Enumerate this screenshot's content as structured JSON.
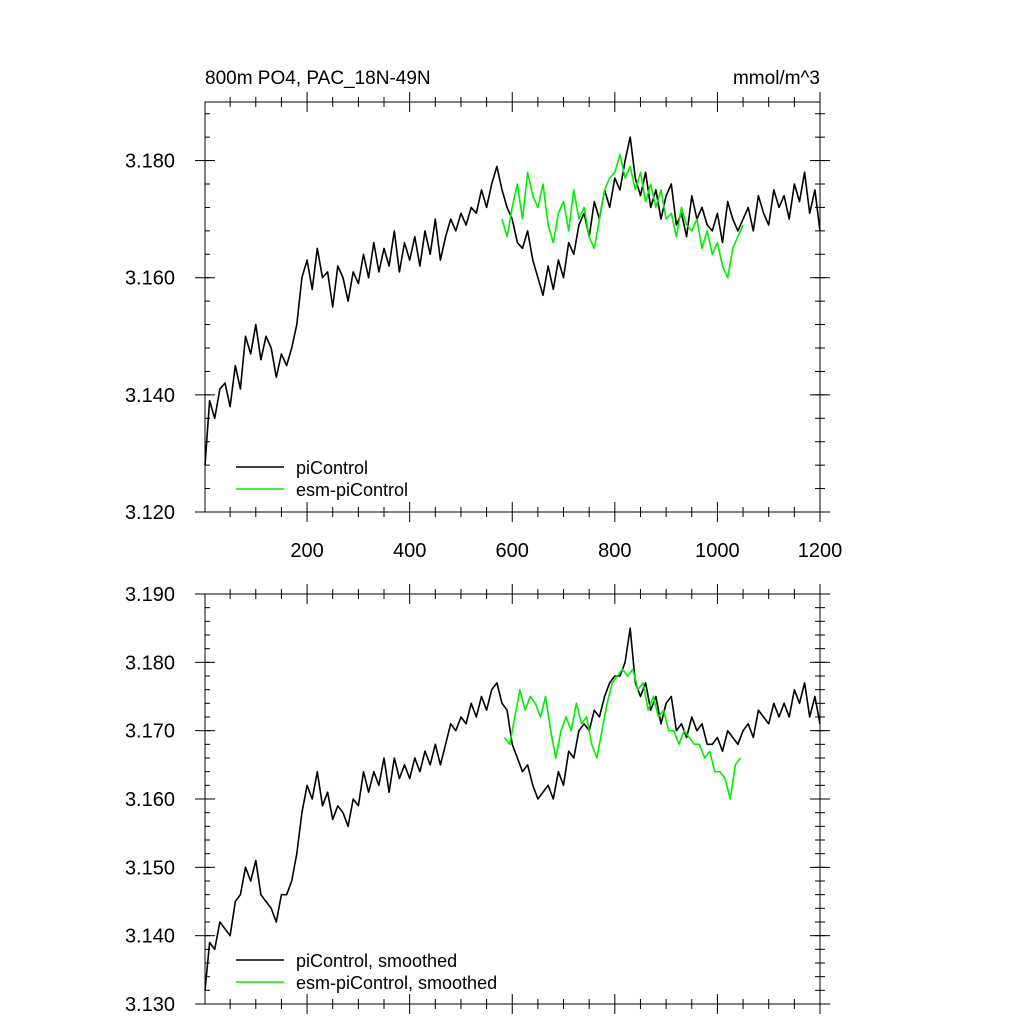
{
  "chart_data": [
    {
      "type": "line",
      "title": "800m PO4, PAC_18N-49N",
      "units": "mmol/m^3",
      "xlim": [
        1,
        1200
      ],
      "ylim": [
        3.12,
        3.19
      ],
      "x_ticks": [
        200,
        400,
        600,
        800,
        1000,
        1200
      ],
      "x_tick_labels": [
        "200",
        "400",
        "600",
        "800",
        "1000",
        "1200"
      ],
      "y_ticks": [
        3.12,
        3.14,
        3.16,
        3.18
      ],
      "y_tick_labels": [
        "3.120",
        "3.140",
        "3.160",
        "3.180"
      ],
      "legend_position": "bottom-left",
      "series": [
        {
          "name": "piControl",
          "color": "#000000",
          "x": [
            1,
            10,
            20,
            30,
            40,
            50,
            60,
            70,
            80,
            90,
            100,
            110,
            120,
            130,
            140,
            150,
            160,
            170,
            180,
            190,
            200,
            210,
            220,
            230,
            240,
            250,
            260,
            270,
            280,
            290,
            300,
            310,
            320,
            330,
            340,
            350,
            360,
            370,
            380,
            390,
            400,
            410,
            420,
            430,
            440,
            450,
            460,
            470,
            480,
            490,
            500,
            510,
            520,
            530,
            540,
            550,
            560,
            570,
            580,
            590,
            600,
            610,
            620,
            630,
            640,
            650,
            660,
            670,
            680,
            690,
            700,
            710,
            720,
            730,
            740,
            750,
            760,
            770,
            780,
            790,
            800,
            810,
            820,
            830,
            840,
            850,
            860,
            870,
            880,
            890,
            900,
            910,
            920,
            930,
            940,
            950,
            960,
            970,
            980,
            990,
            1000,
            1010,
            1020,
            1030,
            1040,
            1050,
            1060,
            1070,
            1080,
            1090,
            1100,
            1110,
            1120,
            1130,
            1140,
            1150,
            1160,
            1170,
            1180,
            1190,
            1200
          ],
          "y": [
            3.128,
            3.139,
            3.136,
            3.141,
            3.142,
            3.138,
            3.145,
            3.141,
            3.15,
            3.147,
            3.152,
            3.146,
            3.15,
            3.148,
            3.143,
            3.147,
            3.145,
            3.148,
            3.152,
            3.16,
            3.163,
            3.158,
            3.165,
            3.16,
            3.161,
            3.155,
            3.162,
            3.16,
            3.156,
            3.161,
            3.159,
            3.164,
            3.16,
            3.166,
            3.161,
            3.165,
            3.162,
            3.168,
            3.161,
            3.166,
            3.163,
            3.167,
            3.162,
            3.168,
            3.164,
            3.17,
            3.163,
            3.167,
            3.17,
            3.168,
            3.171,
            3.169,
            3.172,
            3.171,
            3.175,
            3.172,
            3.176,
            3.179,
            3.175,
            3.172,
            3.17,
            3.166,
            3.165,
            3.168,
            3.163,
            3.16,
            3.157,
            3.162,
            3.158,
            3.163,
            3.16,
            3.166,
            3.164,
            3.169,
            3.171,
            3.167,
            3.173,
            3.17,
            3.175,
            3.172,
            3.177,
            3.175,
            3.18,
            3.184,
            3.177,
            3.174,
            3.178,
            3.172,
            3.175,
            3.17,
            3.174,
            3.176,
            3.169,
            3.171,
            3.167,
            3.174,
            3.17,
            3.172,
            3.169,
            3.168,
            3.171,
            3.166,
            3.173,
            3.17,
            3.168,
            3.17,
            3.172,
            3.168,
            3.174,
            3.171,
            3.169,
            3.175,
            3.172,
            3.174,
            3.17,
            3.176,
            3.173,
            3.178,
            3.171,
            3.175,
            3.168
          ]
        },
        {
          "name": "esm-piControl",
          "color": "#00ee00",
          "x": [
            580,
            590,
            600,
            610,
            620,
            630,
            640,
            650,
            660,
            670,
            680,
            690,
            700,
            710,
            720,
            730,
            740,
            750,
            760,
            770,
            780,
            790,
            800,
            810,
            820,
            830,
            840,
            850,
            860,
            870,
            880,
            890,
            900,
            910,
            920,
            930,
            940,
            950,
            960,
            970,
            980,
            990,
            1000,
            1010,
            1020,
            1030,
            1040,
            1050
          ],
          "y": [
            3.17,
            3.167,
            3.172,
            3.176,
            3.17,
            3.178,
            3.174,
            3.172,
            3.176,
            3.169,
            3.166,
            3.171,
            3.173,
            3.168,
            3.175,
            3.17,
            3.172,
            3.167,
            3.165,
            3.17,
            3.175,
            3.177,
            3.178,
            3.181,
            3.177,
            3.179,
            3.175,
            3.178,
            3.173,
            3.176,
            3.172,
            3.175,
            3.17,
            3.171,
            3.167,
            3.172,
            3.169,
            3.168,
            3.17,
            3.165,
            3.168,
            3.164,
            3.166,
            3.162,
            3.16,
            3.165,
            3.167,
            3.169
          ]
        }
      ]
    },
    {
      "type": "line",
      "title": "",
      "xlim": [
        1,
        1200
      ],
      "ylim": [
        3.13,
        3.19
      ],
      "x_ticks": [
        200,
        400,
        600,
        800,
        1000,
        1200
      ],
      "y_ticks": [
        3.13,
        3.14,
        3.15,
        3.16,
        3.17,
        3.18,
        3.19
      ],
      "y_tick_labels": [
        "3.130",
        "3.140",
        "3.150",
        "3.160",
        "3.170",
        "3.180",
        "3.190"
      ],
      "legend_position": "bottom-left",
      "series": [
        {
          "name": "piControl, smoothed",
          "color": "#000000",
          "x": [
            1,
            10,
            20,
            30,
            40,
            50,
            60,
            70,
            80,
            90,
            100,
            110,
            120,
            130,
            140,
            150,
            160,
            170,
            180,
            190,
            200,
            210,
            220,
            230,
            240,
            250,
            260,
            270,
            280,
            290,
            300,
            310,
            320,
            330,
            340,
            350,
            360,
            370,
            380,
            390,
            400,
            410,
            420,
            430,
            440,
            450,
            460,
            470,
            480,
            490,
            500,
            510,
            520,
            530,
            540,
            550,
            560,
            570,
            580,
            590,
            600,
            610,
            620,
            630,
            640,
            650,
            660,
            670,
            680,
            690,
            700,
            710,
            720,
            730,
            740,
            750,
            760,
            770,
            780,
            790,
            800,
            810,
            820,
            830,
            840,
            850,
            860,
            870,
            880,
            890,
            900,
            910,
            920,
            930,
            940,
            950,
            960,
            970,
            980,
            990,
            1000,
            1010,
            1020,
            1030,
            1040,
            1050,
            1060,
            1070,
            1080,
            1090,
            1100,
            1110,
            1120,
            1130,
            1140,
            1150,
            1160,
            1170,
            1180,
            1190,
            1200
          ],
          "y": [
            3.132,
            3.139,
            3.138,
            3.142,
            3.141,
            3.14,
            3.145,
            3.146,
            3.15,
            3.148,
            3.151,
            3.146,
            3.145,
            3.144,
            3.142,
            3.146,
            3.146,
            3.148,
            3.152,
            3.158,
            3.162,
            3.16,
            3.164,
            3.159,
            3.161,
            3.157,
            3.159,
            3.158,
            3.156,
            3.16,
            3.159,
            3.164,
            3.161,
            3.164,
            3.162,
            3.166,
            3.161,
            3.166,
            3.163,
            3.165,
            3.163,
            3.166,
            3.164,
            3.167,
            3.165,
            3.168,
            3.165,
            3.168,
            3.171,
            3.17,
            3.172,
            3.171,
            3.174,
            3.172,
            3.175,
            3.173,
            3.176,
            3.177,
            3.174,
            3.173,
            3.168,
            3.166,
            3.164,
            3.165,
            3.162,
            3.16,
            3.161,
            3.162,
            3.16,
            3.164,
            3.162,
            3.167,
            3.166,
            3.17,
            3.171,
            3.17,
            3.173,
            3.172,
            3.175,
            3.177,
            3.178,
            3.178,
            3.18,
            3.185,
            3.177,
            3.175,
            3.177,
            3.173,
            3.175,
            3.171,
            3.174,
            3.175,
            3.17,
            3.171,
            3.169,
            3.172,
            3.17,
            3.171,
            3.168,
            3.168,
            3.169,
            3.167,
            3.17,
            3.169,
            3.168,
            3.17,
            3.171,
            3.169,
            3.173,
            3.172,
            3.171,
            3.174,
            3.172,
            3.174,
            3.172,
            3.176,
            3.174,
            3.177,
            3.172,
            3.175,
            3.171
          ]
        },
        {
          "name": "esm-piControl, smoothed",
          "color": "#00ee00",
          "x": [
            585,
            595,
            605,
            615,
            625,
            635,
            645,
            655,
            665,
            675,
            685,
            695,
            705,
            715,
            725,
            735,
            745,
            755,
            765,
            775,
            785,
            795,
            805,
            815,
            825,
            835,
            845,
            855,
            865,
            875,
            885,
            895,
            905,
            915,
            925,
            935,
            945,
            955,
            965,
            975,
            985,
            995,
            1005,
            1015,
            1025,
            1035,
            1045
          ],
          "y": [
            3.169,
            3.168,
            3.172,
            3.176,
            3.173,
            3.175,
            3.174,
            3.172,
            3.175,
            3.17,
            3.166,
            3.17,
            3.172,
            3.17,
            3.174,
            3.171,
            3.172,
            3.168,
            3.166,
            3.17,
            3.174,
            3.177,
            3.178,
            3.179,
            3.178,
            3.179,
            3.176,
            3.177,
            3.173,
            3.175,
            3.172,
            3.173,
            3.17,
            3.17,
            3.168,
            3.17,
            3.169,
            3.168,
            3.168,
            3.166,
            3.167,
            3.164,
            3.164,
            3.163,
            3.16,
            3.165,
            3.166
          ]
        }
      ]
    }
  ]
}
